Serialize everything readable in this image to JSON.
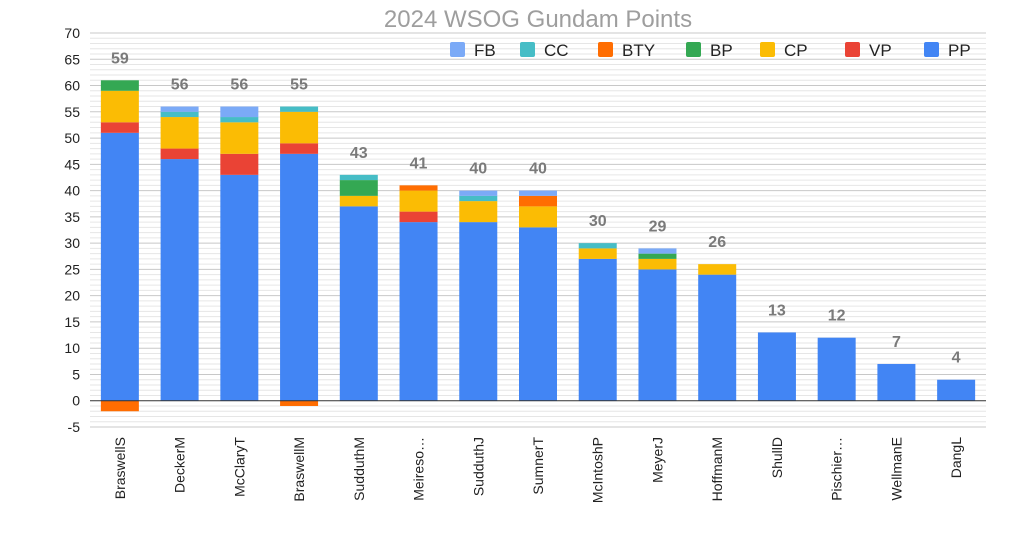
{
  "chart_data": {
    "type": "bar",
    "stacked": true,
    "title": "2024 WSOG Gundam Points",
    "xlabel": "",
    "ylabel": "",
    "ylim": [
      -5,
      70
    ],
    "y_ticks": [
      -5,
      0,
      5,
      10,
      15,
      20,
      25,
      30,
      35,
      40,
      45,
      50,
      55,
      60,
      65,
      70
    ],
    "grid": true,
    "legend_position": "top-right",
    "categories": [
      "BraswellS",
      "DeckerM",
      "McClaryT",
      "BraswellM",
      "SudduthM",
      "Meireso…",
      "SudduthJ",
      "SumnerT",
      "McIntoshP",
      "MeyerJ",
      "HoffmanM",
      "ShullD",
      "Pischier…",
      "WellmanE",
      "DangL"
    ],
    "series": [
      {
        "name": "PP",
        "color": "#4285f4",
        "values": [
          51,
          46,
          43,
          47,
          37,
          34,
          34,
          33,
          27,
          25,
          24,
          13,
          12,
          7,
          4
        ]
      },
      {
        "name": "VP",
        "color": "#ea4335",
        "values": [
          2,
          2,
          4,
          2,
          0,
          2,
          0,
          0,
          0,
          0,
          0,
          0,
          0,
          0,
          0
        ]
      },
      {
        "name": "CP",
        "color": "#fbbc04",
        "values": [
          6,
          6,
          6,
          6,
          2,
          4,
          4,
          4,
          2,
          2,
          2,
          0,
          0,
          0,
          0
        ]
      },
      {
        "name": "BP",
        "color": "#34a853",
        "values": [
          2,
          0,
          0,
          0,
          3,
          0,
          0,
          0,
          0,
          1,
          0,
          0,
          0,
          0,
          0
        ]
      },
      {
        "name": "BTY",
        "color": "#ff6d01",
        "values": [
          -2,
          0,
          0,
          -1,
          0,
          1,
          0,
          2,
          0,
          0,
          0,
          0,
          0,
          0,
          0
        ]
      },
      {
        "name": "CC",
        "color": "#46bdc6",
        "values": [
          0,
          1,
          1,
          1,
          1,
          0,
          1,
          0,
          1,
          0,
          0,
          0,
          0,
          0,
          0
        ]
      },
      {
        "name": "FB",
        "color": "#7baaf7",
        "values": [
          0,
          1,
          2,
          0,
          0,
          0,
          1,
          1,
          0,
          1,
          0,
          0,
          0,
          0,
          0
        ]
      }
    ],
    "legend_order": [
      "FB",
      "CC",
      "BTY",
      "BP",
      "CP",
      "VP",
      "PP"
    ],
    "totals": [
      59,
      56,
      56,
      55,
      43,
      41,
      40,
      40,
      30,
      29,
      26,
      13,
      12,
      7,
      4
    ]
  }
}
